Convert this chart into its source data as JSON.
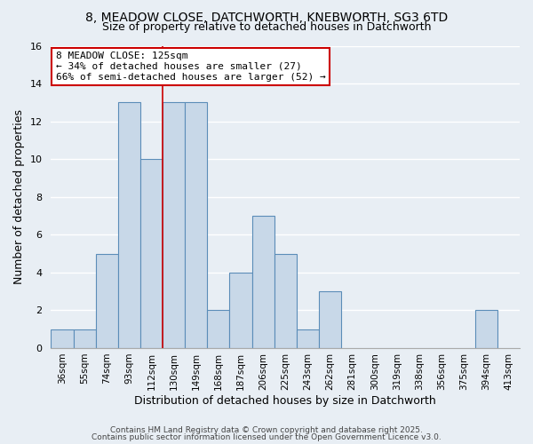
{
  "title": "8, MEADOW CLOSE, DATCHWORTH, KNEBWORTH, SG3 6TD",
  "subtitle": "Size of property relative to detached houses in Datchworth",
  "xlabel": "Distribution of detached houses by size in Datchworth",
  "ylabel": "Number of detached properties",
  "bin_labels": [
    "36sqm",
    "55sqm",
    "74sqm",
    "93sqm",
    "112sqm",
    "130sqm",
    "149sqm",
    "168sqm",
    "187sqm",
    "206sqm",
    "225sqm",
    "243sqm",
    "262sqm",
    "281sqm",
    "300sqm",
    "319sqm",
    "338sqm",
    "356sqm",
    "375sqm",
    "394sqm",
    "413sqm"
  ],
  "bar_values": [
    1,
    1,
    5,
    13,
    10,
    13,
    13,
    2,
    4,
    7,
    5,
    1,
    3,
    0,
    0,
    0,
    0,
    0,
    0,
    2,
    0
  ],
  "bar_color": "#c8d8e8",
  "bar_edgecolor": "#5b8db8",
  "bg_color": "#e8eef4",
  "grid_color": "#ffffff",
  "annotation_title": "8 MEADOW CLOSE: 125sqm",
  "annotation_line1": "← 34% of detached houses are smaller (27)",
  "annotation_line2": "66% of semi-detached houses are larger (52) →",
  "annotation_box_color": "#ffffff",
  "annotation_box_edgecolor": "#cc0000",
  "vline_color": "#cc0000",
  "vline_pos": 4.5,
  "ylim": [
    0,
    16
  ],
  "yticks": [
    0,
    2,
    4,
    6,
    8,
    10,
    12,
    14,
    16
  ],
  "footer1": "Contains HM Land Registry data © Crown copyright and database right 2025.",
  "footer2": "Contains public sector information licensed under the Open Government Licence v3.0."
}
